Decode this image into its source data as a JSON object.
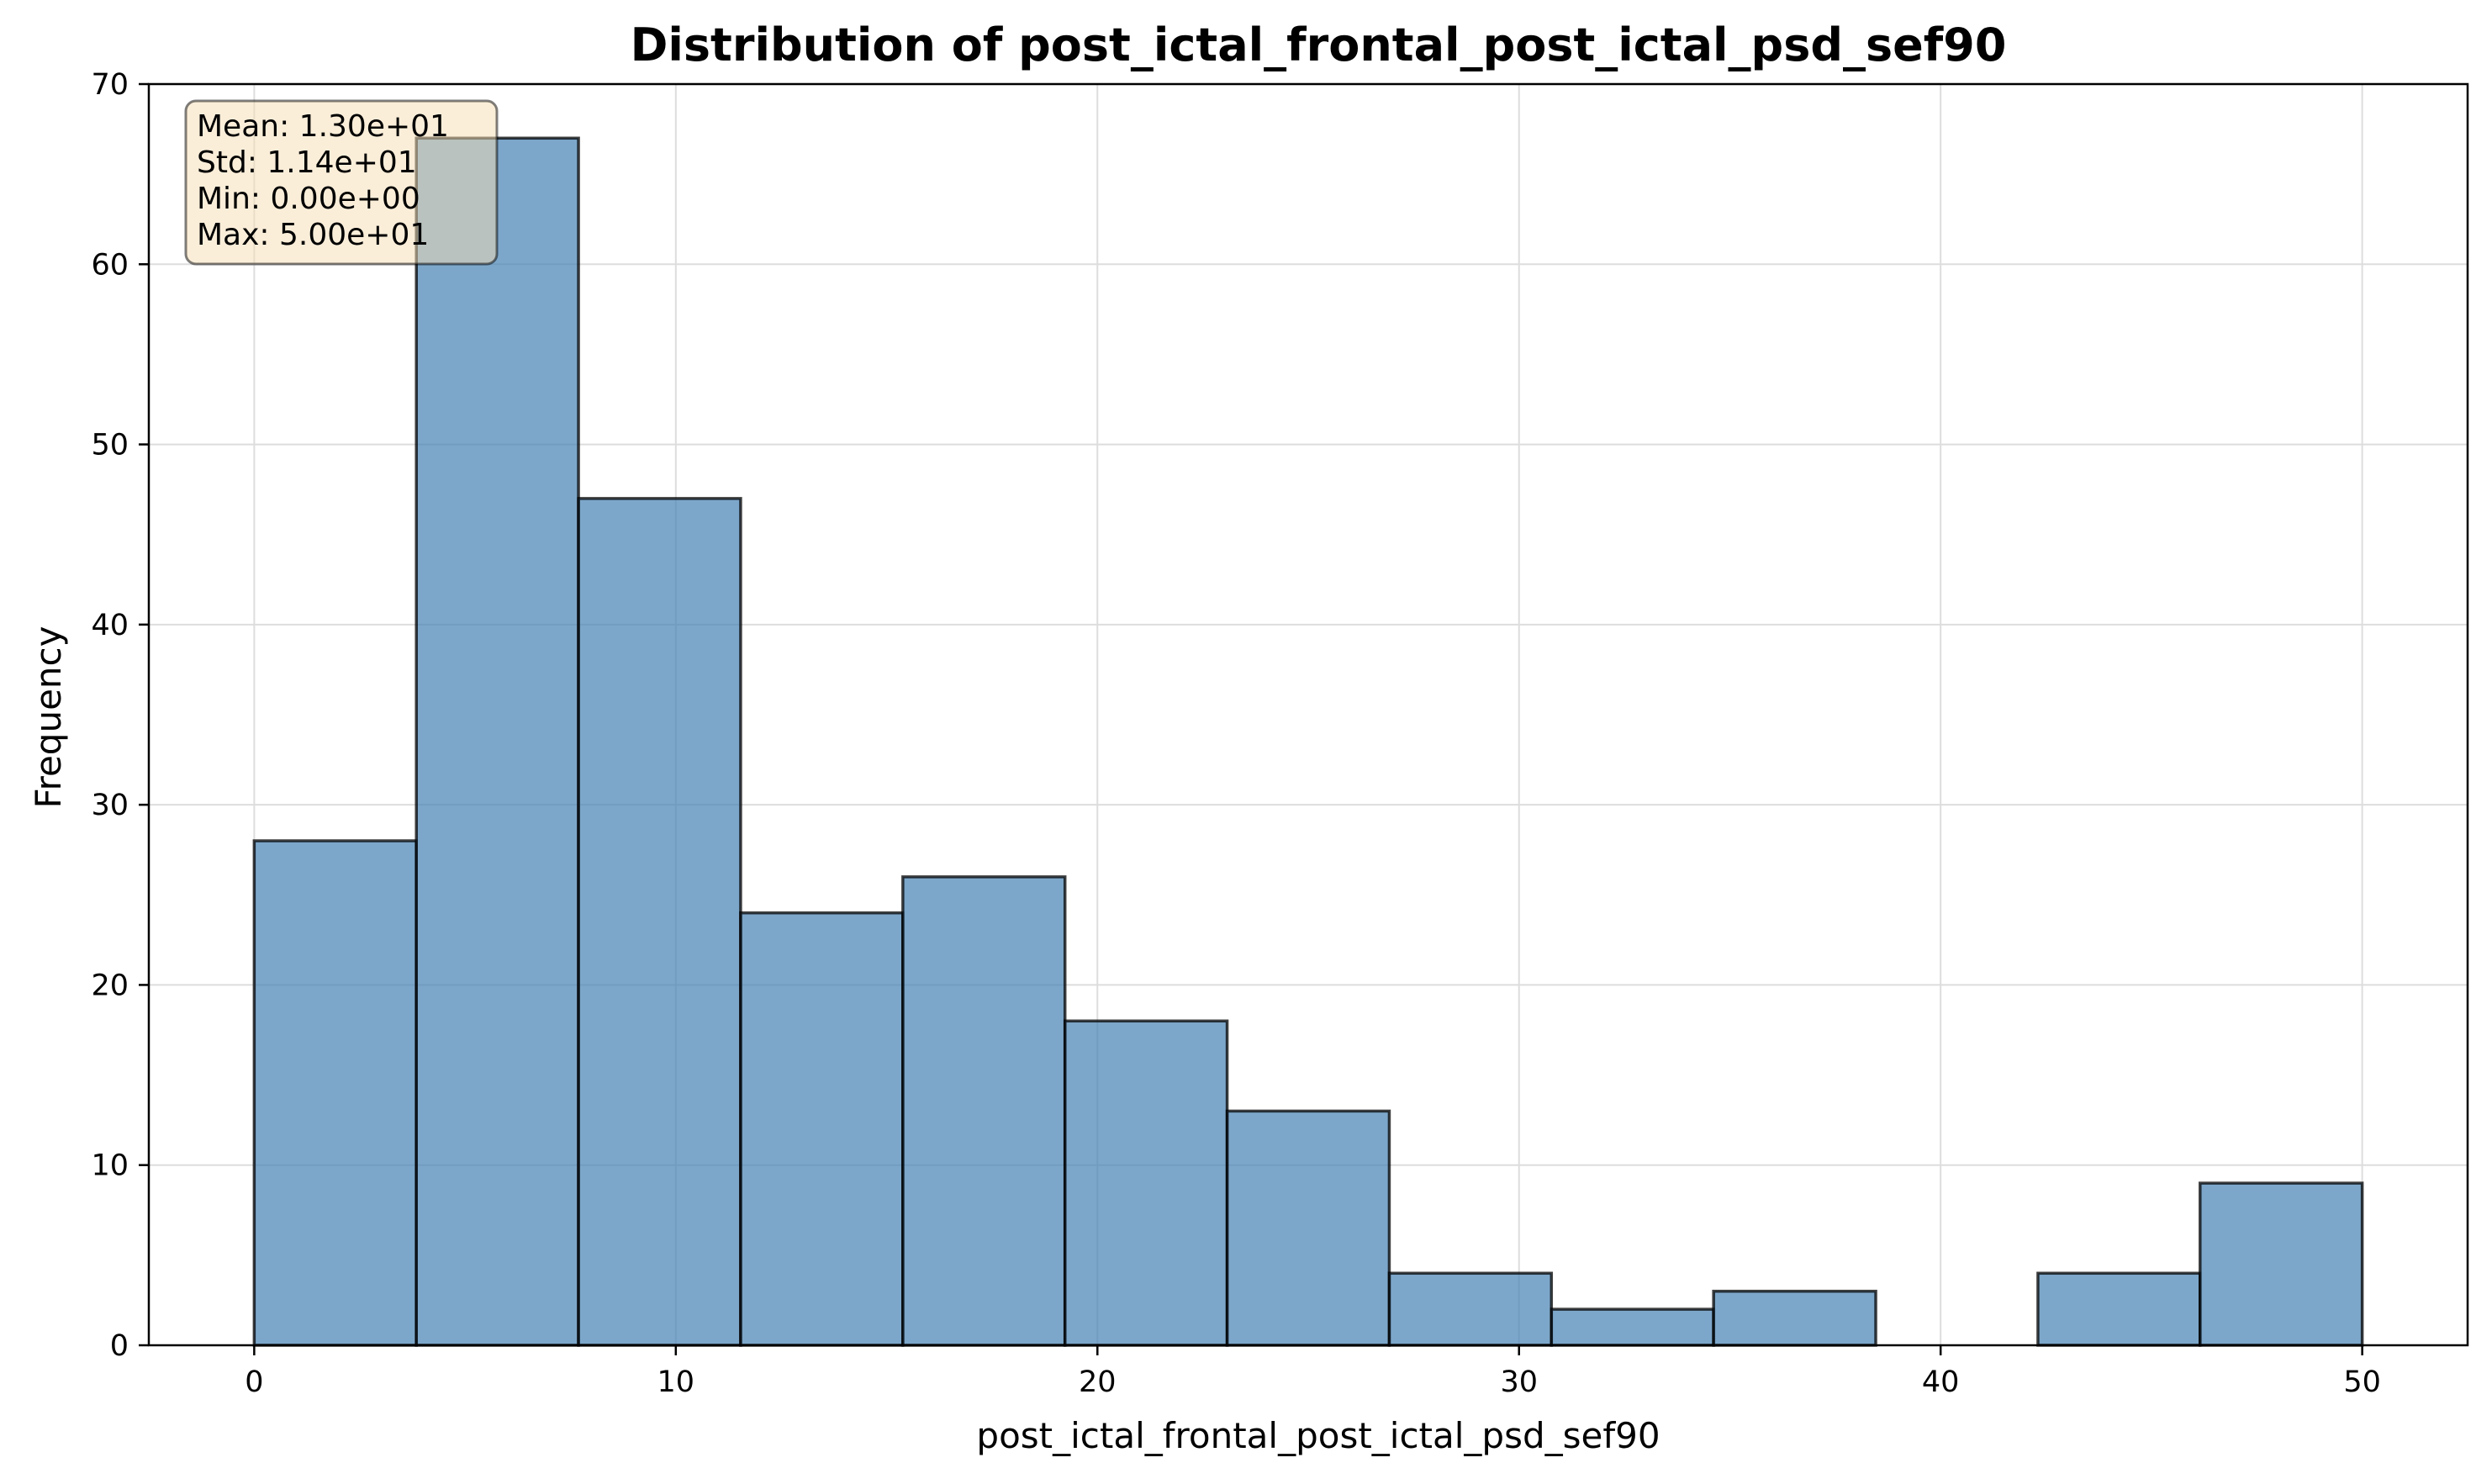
{
  "chart_data": {
    "type": "bar",
    "title": "Distribution of post_ictal_frontal_post_ictal_psd_sef90",
    "xlabel": "post_ictal_frontal_post_ictal_psd_sef90",
    "ylabel": "Frequency",
    "xlim": [
      -2.5,
      52.5
    ],
    "ylim": [
      0,
      70
    ],
    "xticks": [
      0,
      10,
      20,
      30,
      40,
      50
    ],
    "yticks": [
      0,
      10,
      20,
      30,
      40,
      50,
      60,
      70
    ],
    "grid": true,
    "bin_edges": [
      0,
      3.846,
      7.692,
      11.538,
      15.385,
      19.231,
      23.077,
      26.923,
      30.769,
      34.615,
      38.462,
      42.308,
      46.154,
      50
    ],
    "values": [
      28,
      67,
      47,
      24,
      26,
      18,
      13,
      4,
      2,
      3,
      0,
      4,
      9
    ],
    "bar_color": "#4682B4",
    "bar_edge_color": "#000000",
    "stats_box": {
      "lines": [
        "Mean: 1.30e+01",
        "Std: 1.14e+01",
        "Min: 0.00e+00",
        "Max: 5.00e+01"
      ],
      "background": "#F5DEB3",
      "placement": "top-left"
    }
  }
}
